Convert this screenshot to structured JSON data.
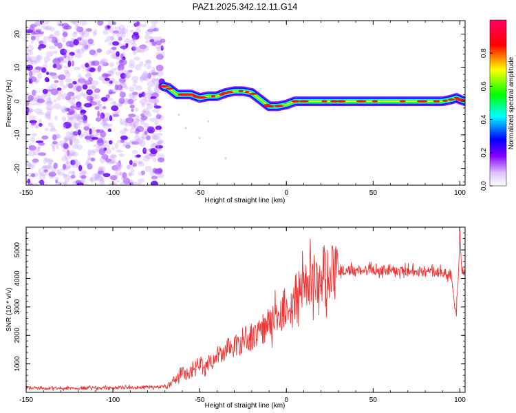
{
  "title": "PAZ1.2025.342.12.11.G14",
  "chart_data": [
    {
      "type": "heatmap",
      "title": "PAZ1.2025.342.12.11.G14",
      "xlabel": "Height of straight line (km)",
      "ylabel": "Frequency (Hz)",
      "xlim": [
        -150,
        103
      ],
      "ylim": [
        -25,
        24
      ],
      "xticks": [
        -150,
        -100,
        -50,
        0,
        50,
        100
      ],
      "xtick_labels": [
        "-150",
        "-100",
        "-50",
        "0",
        "50",
        "100"
      ],
      "yticks": [
        -20,
        -10,
        0,
        10,
        20
      ],
      "ytick_labels": [
        "-20",
        "-10",
        "0",
        "10",
        "20"
      ],
      "noise_region_x": [
        -150,
        -71
      ],
      "ridge": {
        "x": [
          -71,
          -68,
          -63,
          -60,
          -55,
          -50,
          -45,
          -40,
          -35,
          -30,
          -25,
          -20,
          -15,
          -10,
          -5,
          0,
          5,
          10,
          20,
          30,
          40,
          50,
          60,
          70,
          80,
          90,
          95,
          98,
          100,
          103
        ],
        "freq": [
          4.5,
          4,
          2,
          2,
          2,
          1,
          1.5,
          1.5,
          2.5,
          3,
          3,
          2.5,
          0.5,
          -1.5,
          -1.5,
          -1,
          0,
          0,
          0,
          0,
          0,
          0,
          0,
          0,
          0,
          0,
          0.5,
          1,
          0.5,
          0
        ]
      },
      "colorbar": {
        "label": "Normalized spectral amplitude",
        "range": [
          0,
          1
        ],
        "ticks": [
          0.0,
          0.2,
          0.4,
          0.6,
          0.8
        ],
        "tick_labels": [
          "0.0",
          "0.2",
          "0.4",
          "0.6",
          "0.8"
        ],
        "colormap": [
          "#ffffff",
          "#8800ff",
          "#0000ff",
          "#00ffff",
          "#00ff00",
          "#ffff00",
          "#ff0000",
          "#ff0066"
        ]
      }
    },
    {
      "type": "line",
      "xlabel": "Height of straight line (km)",
      "ylabel": "SNR (10 * v/v)",
      "xlim": [
        -150,
        103
      ],
      "ylim": [
        0,
        5800
      ],
      "xticks": [
        -150,
        -100,
        -50,
        0,
        50,
        100
      ],
      "xtick_labels": [
        "-150",
        "-100",
        "-50",
        "0",
        "50",
        "100"
      ],
      "yticks": [
        1000,
        2000,
        3000,
        4000,
        5000
      ],
      "ytick_labels": [
        "1000",
        "2000",
        "3000",
        "4000",
        "5000"
      ],
      "color": "#ee3333",
      "series": [
        {
          "name": "SNR",
          "x": [
            -150,
            -140,
            -130,
            -120,
            -110,
            -100,
            -90,
            -80,
            -75,
            -70,
            -68,
            -65,
            -62,
            -60,
            -58,
            -55,
            -52,
            -50,
            -45,
            -40,
            -35,
            -30,
            -25,
            -20,
            -15,
            -10,
            -5,
            0,
            5,
            10,
            15,
            20,
            25,
            30,
            35,
            40,
            50,
            60,
            70,
            80,
            90,
            95,
            96,
            97,
            98,
            99,
            100,
            101,
            103
          ],
          "y": [
            150,
            150,
            150,
            150,
            150,
            160,
            170,
            180,
            190,
            200,
            250,
            400,
            600,
            750,
            650,
            700,
            800,
            900,
            1050,
            1250,
            1450,
            1650,
            1800,
            2000,
            2200,
            2400,
            2700,
            3000,
            3350,
            3700,
            3950,
            4100,
            4200,
            4250,
            4280,
            4300,
            4300,
            4300,
            4250,
            4250,
            4200,
            4100,
            3700,
            3100,
            2900,
            3800,
            5700,
            4300,
            4200
          ]
        }
      ]
    }
  ]
}
